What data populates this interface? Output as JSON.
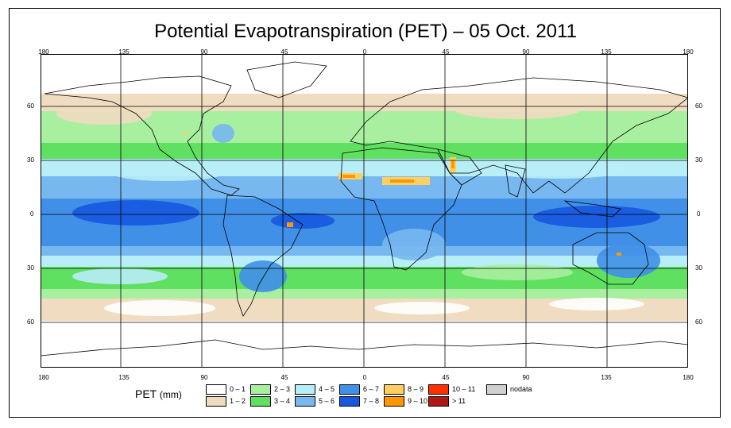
{
  "title": "Potential Evapotranspiration (PET) – 05 Oct. 2011",
  "axis": {
    "lon_ticks": [
      "180",
      "135",
      "90",
      "45",
      "0",
      "45",
      "90",
      "135",
      "180"
    ],
    "lat_ticks": [
      "60",
      "30",
      "0",
      "30",
      "60"
    ]
  },
  "legend": {
    "label": "PET",
    "unit": "(mm)",
    "classes": [
      {
        "label": "0 – 1",
        "color": "#ffffff"
      },
      {
        "label": "1 – 2",
        "color": "#f0dcc0"
      },
      {
        "label": "2 – 3",
        "color": "#a8f0a0"
      },
      {
        "label": "3 – 4",
        "color": "#60e060"
      },
      {
        "label": "4 – 5",
        "color": "#b8eef8"
      },
      {
        "label": "5 – 6",
        "color": "#78b8f0"
      },
      {
        "label": "6 – 7",
        "color": "#4090e8"
      },
      {
        "label": "7 – 8",
        "color": "#1858e0"
      },
      {
        "label": "8 – 9",
        "color": "#ffd060"
      },
      {
        "label": "9 – 10",
        "color": "#ff9800"
      },
      {
        "label": "10 – 11",
        "color": "#ff3000"
      },
      {
        "label": "> 11",
        "color": "#b01818"
      },
      {
        "label": "nodata",
        "color": "#d0d0d0"
      }
    ]
  },
  "colors": {
    "gridline": "#000000",
    "coast": "#000000"
  }
}
